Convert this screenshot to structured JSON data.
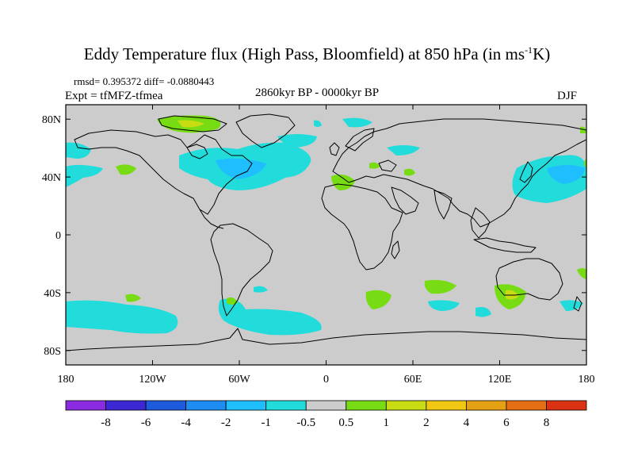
{
  "title": {
    "main": "Eddy Temperature flux (High Pass, Bloomfield) at 850 hPa (in ms",
    "sup": "-1",
    "tail": "K)"
  },
  "stats_line": "rmsd= 0.395372 diff= -0.0880443",
  "experiment": "Expt = tfMFZ-tfmea",
  "period": "2860kyr BP - 0000kyr BP",
  "season": "DJF",
  "axes": {
    "lat_ticks": [
      {
        "value": 80,
        "label": "80N"
      },
      {
        "value": 40,
        "label": "40N"
      },
      {
        "value": 0,
        "label": "0"
      },
      {
        "value": -40,
        "label": "40S"
      },
      {
        "value": -80,
        "label": "80S"
      }
    ],
    "lon_ticks": [
      {
        "value": -180,
        "label": "180"
      },
      {
        "value": -120,
        "label": "120W"
      },
      {
        "value": -60,
        "label": "60W"
      },
      {
        "value": 0,
        "label": "0"
      },
      {
        "value": 60,
        "label": "60E"
      },
      {
        "value": 120,
        "label": "120E"
      },
      {
        "value": 180,
        "label": "180"
      }
    ],
    "lat_range": [
      -90,
      90
    ],
    "lon_range": [
      -180,
      180
    ]
  },
  "colorbar": {
    "colors": [
      "#8a2be2",
      "#3c28d2",
      "#1e5adc",
      "#1e8cf0",
      "#1ebeff",
      "#22dcdc",
      "#cccccc",
      "#78dc14",
      "#c8dc14",
      "#f0c814",
      "#e6a014",
      "#e66e14",
      "#dc3214"
    ],
    "labels": [
      "-8",
      "-6",
      "-4",
      "-2",
      "-1",
      "-0.5",
      "0.5",
      "1",
      "2",
      "4",
      "6",
      "8"
    ]
  },
  "colors": {
    "background": "#cccccc",
    "negative": "#22dcdc",
    "negative_strong": "#1ebeff",
    "positive": "#78dc14",
    "positive_strong": "#c8dc14",
    "coast": "#000000"
  }
}
